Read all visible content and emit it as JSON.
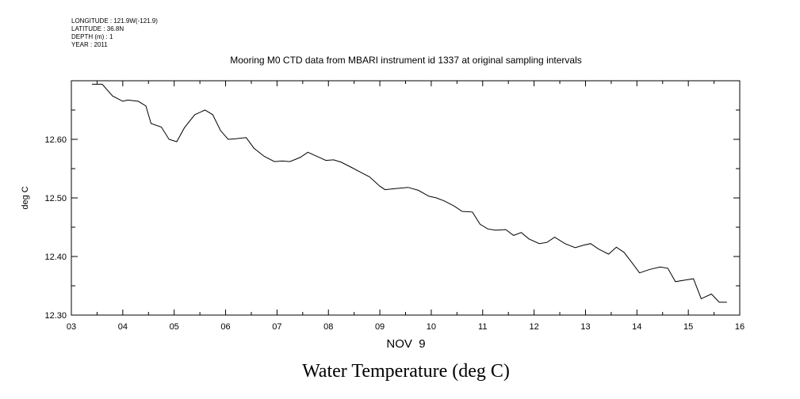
{
  "header": {
    "longitude": "LONGITUDE : 121.9W(-121.9)",
    "latitude": "LATITUDE : 36.8N",
    "depth": "DEPTH (m) : 1",
    "year": "YEAR : 2011"
  },
  "chart_data": {
    "type": "line",
    "title": "Mooring M0 CTD data from MBARI instrument id 1337 at original sampling intervals",
    "subtitle": "Water Temperature (deg C)",
    "xlabel": "NOV  9",
    "ylabel": "deg C",
    "xlim": [
      3,
      16
    ],
    "ylim": [
      12.3,
      12.7
    ],
    "x_ticks": [
      "03",
      "04",
      "05",
      "06",
      "07",
      "08",
      "09",
      "10",
      "11",
      "12",
      "13",
      "14",
      "15",
      "16"
    ],
    "y_ticks": [
      "12.30",
      "12.40",
      "12.50",
      "12.60"
    ],
    "series": [
      {
        "x": [
          3.4,
          3.6,
          3.8,
          4.0,
          4.1,
          4.3,
          4.45,
          4.55,
          4.75,
          4.9,
          5.05,
          5.2,
          5.4,
          5.6,
          5.75,
          5.9,
          6.05,
          6.2,
          6.4,
          6.55,
          6.75,
          6.95,
          7.1,
          7.25,
          7.45,
          7.6,
          7.8,
          7.95,
          8.1,
          8.25,
          8.45,
          8.6,
          8.8,
          9.0,
          9.1,
          9.3,
          9.55,
          9.75,
          9.95,
          10.1,
          10.25,
          10.45,
          10.6,
          10.8,
          10.95,
          11.1,
          11.25,
          11.45,
          11.6,
          11.75,
          11.9,
          12.1,
          12.25,
          12.4,
          12.6,
          12.8,
          12.95,
          13.1,
          13.25,
          13.45,
          13.6,
          13.75,
          13.9,
          14.05,
          14.25,
          14.45,
          14.6,
          14.75,
          14.95,
          15.1,
          15.25,
          15.45,
          15.6,
          15.75
        ],
        "y": [
          12.694,
          12.694,
          12.674,
          12.665,
          12.667,
          12.665,
          12.657,
          12.627,
          12.621,
          12.6,
          12.596,
          12.62,
          12.642,
          12.65,
          12.642,
          12.615,
          12.6,
          12.601,
          12.603,
          12.585,
          12.571,
          12.562,
          12.563,
          12.562,
          12.569,
          12.578,
          12.57,
          12.564,
          12.565,
          12.561,
          12.552,
          12.545,
          12.536,
          12.52,
          12.514,
          12.516,
          12.518,
          12.513,
          12.503,
          12.5,
          12.495,
          12.486,
          12.477,
          12.476,
          12.455,
          12.447,
          12.445,
          12.446,
          12.436,
          12.441,
          12.43,
          12.422,
          12.424,
          12.433,
          12.422,
          12.415,
          12.419,
          12.422,
          12.413,
          12.404,
          12.416,
          12.407,
          12.39,
          12.372,
          12.378,
          12.382,
          12.38,
          12.357,
          12.36,
          12.362,
          12.328,
          12.336,
          12.322,
          12.322
        ]
      }
    ]
  }
}
